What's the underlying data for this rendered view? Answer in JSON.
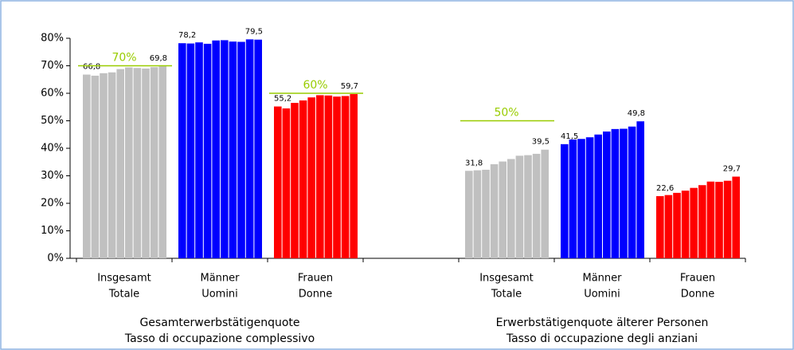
{
  "chart_data": {
    "type": "bar",
    "ylim": [
      0,
      80
    ],
    "yticks": [
      {
        "value": 0,
        "label": "0%"
      },
      {
        "value": 10,
        "label": "10%"
      },
      {
        "value": 20,
        "label": "20%"
      },
      {
        "value": 30,
        "label": "30%"
      },
      {
        "value": 40,
        "label": "40%"
      },
      {
        "value": 50,
        "label": "50%"
      },
      {
        "value": 60,
        "label": "60%"
      },
      {
        "value": 70,
        "label": "70%"
      },
      {
        "value": 80,
        "label": "80%"
      }
    ],
    "panels": [
      {
        "title": [
          "Gesamterwerbstätigenquote",
          "Tasso di occupazione complessivo"
        ],
        "groups": [
          {
            "label": [
              "Insgesamt",
              "Totale"
            ],
            "color": "#c0c0c0",
            "values": [
              66.8,
              66.4,
              67.3,
              67.6,
              68.8,
              69.4,
              69.2,
              69.0,
              69.5,
              69.8
            ],
            "value_labels": [
              "66,8",
              null,
              null,
              null,
              null,
              null,
              null,
              null,
              null,
              "69,8"
            ],
            "target": {
              "value": 70,
              "label": "70%"
            }
          },
          {
            "label": [
              "Männer",
              "Uomini"
            ],
            "color": "#0000ff",
            "values": [
              78.2,
              78.1,
              78.5,
              78.0,
              79.2,
              79.3,
              78.8,
              78.7,
              79.6,
              79.5
            ],
            "value_labels": [
              "78,2",
              null,
              null,
              null,
              null,
              null,
              null,
              null,
              null,
              "79,5"
            ]
          },
          {
            "label": [
              "Frauen",
              "Donne"
            ],
            "color": "#ff0000",
            "values": [
              55.2,
              54.5,
              56.5,
              57.4,
              58.5,
              59.3,
              59.2,
              58.8,
              59.0,
              59.7
            ],
            "value_labels": [
              "55,2",
              null,
              null,
              null,
              null,
              null,
              null,
              null,
              null,
              "59,7"
            ],
            "target": {
              "value": 60,
              "label": "60%"
            }
          }
        ]
      },
      {
        "title": [
          "Erwerbstätigenquote älterer Personen",
          "Tasso di occupazione degli anziani"
        ],
        "groups": [
          {
            "label": [
              "Insgesamt",
              "Totale"
            ],
            "color": "#c0c0c0",
            "values": [
              31.8,
              32.0,
              32.2,
              34.2,
              35.2,
              36.1,
              37.3,
              37.5,
              38.0,
              39.5
            ],
            "value_labels": [
              "31,8",
              null,
              null,
              null,
              null,
              null,
              null,
              null,
              null,
              "39,5"
            ],
            "target": {
              "value": 50,
              "label": "50%"
            }
          },
          {
            "label": [
              "Männer",
              "Uomini"
            ],
            "color": "#0000ff",
            "values": [
              41.5,
              43.2,
              43.4,
              44.0,
              45.0,
              46.1,
              47.0,
              47.1,
              47.9,
              49.8
            ],
            "value_labels": [
              "41,5",
              null,
              null,
              null,
              null,
              null,
              null,
              null,
              null,
              "49,8"
            ]
          },
          {
            "label": [
              "Frauen",
              "Donne"
            ],
            "color": "#ff0000",
            "values": [
              22.6,
              23.0,
              23.8,
              24.6,
              25.6,
              26.6,
              27.9,
              27.8,
              28.2,
              29.7
            ],
            "value_labels": [
              "22,6",
              null,
              null,
              null,
              null,
              null,
              null,
              null,
              null,
              "29,7"
            ]
          }
        ]
      }
    ],
    "target_color": "#99cc00"
  }
}
